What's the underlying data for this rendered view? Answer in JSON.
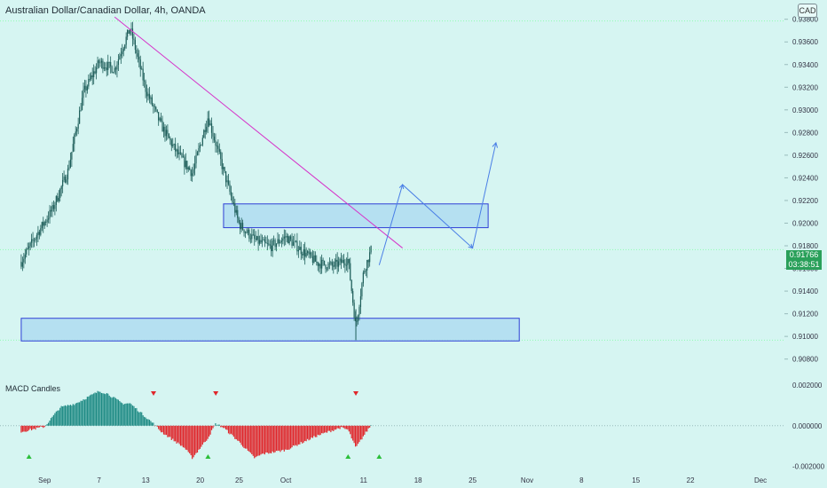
{
  "header": {
    "title": "Australian Dollar/Canadian Dollar, 4h, OANDA",
    "currency_badge": "CAD"
  },
  "price_tag": {
    "price": "0.91766",
    "countdown": "03:38:51"
  },
  "indicator": {
    "label": "MACD Candles"
  },
  "colors": {
    "background": "#d6f5f2",
    "candle": "#1e5e5a",
    "trendline": "#d633c9",
    "zone_fill": "#a9d8f0",
    "zone_border": "#2f3fd6",
    "projection": "#4a7fe6",
    "macd_positive": "#1e8a84",
    "macd_negative": "#e0262b",
    "price_tag": "#2aa05a"
  },
  "chart_data": [
    {
      "type": "candlestick",
      "symbol": "AUD/CAD",
      "timeframe": "4h",
      "x_ticks": [
        "Sep",
        "7",
        "13",
        "20",
        "25",
        "Oct",
        "11",
        "18",
        "25",
        "Nov",
        "8",
        "15",
        "22",
        "Dec"
      ],
      "y_ticks": [
        "0.93800",
        "0.93600",
        "0.93400",
        "0.93200",
        "0.93000",
        "0.92800",
        "0.92600",
        "0.92400",
        "0.92200",
        "0.92000",
        "0.91800",
        "0.91600",
        "0.91400",
        "0.91200",
        "0.91000",
        "0.90800"
      ],
      "ylim": [
        0.9068,
        0.9397
      ],
      "last_price": 0.91766,
      "high_line": 0.93785,
      "low_line": 0.90967,
      "path_points": [
        {
          "x": "Aug 28",
          "y": 0.9166
        },
        {
          "x": "Aug 30",
          "y": 0.919
        },
        {
          "x": "Sep 1",
          "y": 0.9212
        },
        {
          "x": "Sep 3",
          "y": 0.9246
        },
        {
          "x": "Sep 5",
          "y": 0.9315
        },
        {
          "x": "Sep 7",
          "y": 0.9342
        },
        {
          "x": "Sep 9",
          "y": 0.9336
        },
        {
          "x": "Sep 10",
          "y": 0.9355
        },
        {
          "x": "Sep 11",
          "y": 0.9372
        },
        {
          "x": "Sep 13",
          "y": 0.9318
        },
        {
          "x": "Sep 15",
          "y": 0.9286
        },
        {
          "x": "Sep 17",
          "y": 0.9262
        },
        {
          "x": "Sep 19",
          "y": 0.9244
        },
        {
          "x": "Sep 21",
          "y": 0.9294
        },
        {
          "x": "Sep 23",
          "y": 0.9246
        },
        {
          "x": "Sep 25",
          "y": 0.9199
        },
        {
          "x": "Sep 27",
          "y": 0.9185
        },
        {
          "x": "Sep 29",
          "y": 0.9179
        },
        {
          "x": "Oct 1",
          "y": 0.9188
        },
        {
          "x": "Oct 3",
          "y": 0.9176
        },
        {
          "x": "Oct 5",
          "y": 0.9165
        },
        {
          "x": "Oct 7",
          "y": 0.9162
        },
        {
          "x": "Oct 9",
          "y": 0.9168
        },
        {
          "x": "Oct 10",
          "y": 0.9108
        },
        {
          "x": "Oct 11",
          "y": 0.9157
        },
        {
          "x": "Oct 12",
          "y": 0.9177
        }
      ],
      "trendline": [
        {
          "x": "Sep 9",
          "y": 0.9382
        },
        {
          "x": "Oct 16",
          "y": 0.9178
        }
      ],
      "resistance_zone": {
        "x_start": "Sep 23",
        "x_end": "Oct 27",
        "y_low": 0.9196,
        "y_high": 0.9217
      },
      "support_zone": {
        "x_start": "Aug 28",
        "x_end": "Oct 31",
        "y_low": 0.9096,
        "y_high": 0.9116
      },
      "projection": [
        {
          "x": "Oct 13",
          "y": 0.9163
        },
        {
          "x": "Oct 16",
          "y": 0.9234
        },
        {
          "x": "Oct 25",
          "y": 0.9178
        },
        {
          "x": "Oct 28",
          "y": 0.9271
        }
      ]
    },
    {
      "type": "bar",
      "name": "MACD Candles",
      "y_ticks": [
        "0.002000",
        "0.000000",
        "-0.002000"
      ],
      "ylim": [
        -0.0022,
        0.0024
      ],
      "envelope": [
        {
          "x": "Aug 28",
          "y": -0.0003
        },
        {
          "x": "Aug 31",
          "y": -5e-05
        },
        {
          "x": "Sep 2",
          "y": 0.0009
        },
        {
          "x": "Sep 4",
          "y": 0.0011
        },
        {
          "x": "Sep 7",
          "y": 0.0017
        },
        {
          "x": "Sep 8",
          "y": 0.0016
        },
        {
          "x": "Sep 10",
          "y": 0.0011
        },
        {
          "x": "Sep 11",
          "y": 0.0011
        },
        {
          "x": "Sep 14",
          "y": 0.0001
        },
        {
          "x": "Sep 15",
          "y": -0.0003
        },
        {
          "x": "Sep 18",
          "y": -0.0011
        },
        {
          "x": "Sep 19",
          "y": -0.0016
        },
        {
          "x": "Sep 21",
          "y": -0.0006
        },
        {
          "x": "Sep 22",
          "y": 0.0001
        },
        {
          "x": "Sep 23",
          "y": -0.0001
        },
        {
          "x": "Sep 25",
          "y": -0.0008
        },
        {
          "x": "Sep 27",
          "y": -0.0016
        },
        {
          "x": "Sep 28",
          "y": -0.0014
        },
        {
          "x": "Oct 1",
          "y": -0.0012
        },
        {
          "x": "Oct 5",
          "y": -0.0005
        },
        {
          "x": "Oct 8",
          "y": -0.0001
        },
        {
          "x": "Oct 9",
          "y": -0.0002
        },
        {
          "x": "Oct 10",
          "y": -0.0011
        },
        {
          "x": "Oct 11",
          "y": -0.0005
        },
        {
          "x": "Oct 12",
          "y": 5e-05
        }
      ],
      "signals_down": [
        "Sep 14",
        "Sep 22",
        "Oct 10"
      ],
      "signals_up": [
        "Aug 29",
        "Sep 21",
        "Oct 9",
        "Oct 13"
      ]
    }
  ]
}
